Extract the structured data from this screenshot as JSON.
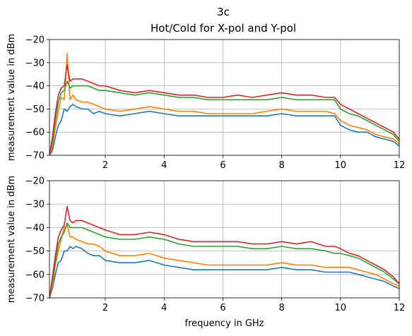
{
  "figure": {
    "title": "3c",
    "subtitle": "Hot/Cold for X-pol and Y-pol"
  },
  "chart_data": [
    {
      "type": "line",
      "title": "",
      "xlabel": "",
      "ylabel": "measurement value in dBm",
      "xlim": [
        0.1,
        12
      ],
      "ylim": [
        -70,
        -20
      ],
      "xticks": [
        2,
        4,
        6,
        8,
        10,
        12
      ],
      "yticks": [
        -70,
        -60,
        -50,
        -40,
        -30,
        -20
      ],
      "grid": true,
      "x": [
        0.1,
        0.2,
        0.3,
        0.4,
        0.5,
        0.6,
        0.7,
        0.8,
        0.9,
        1.0,
        1.2,
        1.4,
        1.6,
        1.8,
        2.0,
        2.5,
        3.0,
        3.5,
        4.0,
        4.5,
        5.0,
        5.5,
        6.0,
        6.5,
        7.0,
        7.5,
        8.0,
        8.5,
        9.0,
        9.5,
        9.8,
        10.0,
        10.3,
        10.6,
        10.9,
        11.2,
        11.5,
        11.8,
        12.0
      ],
      "series": [
        {
          "color": "#1f77b4",
          "values": [
            -70,
            -68,
            -62,
            -57,
            -55,
            -50,
            -51,
            -49,
            -48,
            -49,
            -50,
            -50,
            -52,
            -51,
            -52,
            -53,
            -52,
            -51,
            -52,
            -53,
            -53,
            -53,
            -53,
            -53,
            -53,
            -53,
            -52,
            -53,
            -53,
            -53,
            -53,
            -57,
            -59,
            -60,
            -60,
            -62,
            -63,
            -64,
            -66
          ]
        },
        {
          "color": "#ff7f0e",
          "values": [
            -70,
            -66,
            -58,
            -51,
            -45,
            -46,
            -26,
            -46,
            -44,
            -46,
            -47,
            -47,
            -48,
            -49,
            -50,
            -51,
            -50,
            -49,
            -50,
            -51,
            -51,
            -52,
            -52,
            -52,
            -52,
            -51,
            -50,
            -51,
            -51,
            -51,
            -52,
            -55,
            -57,
            -58,
            -59,
            -61,
            -62,
            -63,
            -65
          ]
        },
        {
          "color": "#2ca02c",
          "values": [
            -70,
            -64,
            -55,
            -47,
            -43,
            -42,
            -38,
            -41,
            -40,
            -40,
            -40,
            -40,
            -41,
            -42,
            -42,
            -43,
            -44,
            -43,
            -44,
            -45,
            -45,
            -46,
            -46,
            -46,
            -46,
            -46,
            -45,
            -46,
            -46,
            -46,
            -46,
            -50,
            -52,
            -53,
            -55,
            -57,
            -59,
            -61,
            -64
          ]
        },
        {
          "color": "#d62728",
          "values": [
            -70,
            -62,
            -52,
            -44,
            -41,
            -40,
            -31,
            -38,
            -37,
            -37,
            -37,
            -38,
            -39,
            -40,
            -40,
            -42,
            -43,
            -42,
            -43,
            -44,
            -44,
            -45,
            -45,
            -44,
            -45,
            -44,
            -43,
            -44,
            -44,
            -45,
            -45,
            -48,
            -50,
            -52,
            -54,
            -56,
            -58,
            -60,
            -63
          ]
        }
      ]
    },
    {
      "type": "line",
      "title": "",
      "xlabel": "frequency in GHz",
      "ylabel": "measurement value in dBm",
      "xlim": [
        0.1,
        12
      ],
      "ylim": [
        -70,
        -20
      ],
      "xticks": [
        2,
        4,
        6,
        8,
        10,
        12
      ],
      "yticks": [
        -70,
        -60,
        -50,
        -40,
        -30,
        -20
      ],
      "grid": true,
      "x": [
        0.1,
        0.2,
        0.3,
        0.4,
        0.5,
        0.6,
        0.7,
        0.8,
        0.9,
        1.0,
        1.2,
        1.4,
        1.6,
        1.8,
        2.0,
        2.5,
        3.0,
        3.5,
        4.0,
        4.5,
        5.0,
        5.5,
        6.0,
        6.5,
        7.0,
        7.5,
        8.0,
        8.5,
        9.0,
        9.5,
        9.8,
        10.0,
        10.3,
        10.6,
        10.9,
        11.2,
        11.5,
        11.8,
        12.0
      ],
      "series": [
        {
          "color": "#1f77b4",
          "values": [
            -70,
            -66,
            -60,
            -55,
            -54,
            -50,
            -50,
            -48,
            -49,
            -48,
            -49,
            -51,
            -52,
            -52,
            -54,
            -55,
            -55,
            -54,
            -56,
            -57,
            -58,
            -58,
            -58,
            -58,
            -58,
            -58,
            -57,
            -58,
            -58,
            -59,
            -59,
            -59,
            -59,
            -60,
            -61,
            -62,
            -63,
            -65,
            -66
          ]
        },
        {
          "color": "#ff7f0e",
          "values": [
            -70,
            -65,
            -56,
            -50,
            -45,
            -40,
            -39,
            -44,
            -44,
            -45,
            -46,
            -47,
            -47,
            -48,
            -50,
            -52,
            -52,
            -51,
            -53,
            -54,
            -55,
            -56,
            -56,
            -56,
            -56,
            -56,
            -55,
            -56,
            -56,
            -57,
            -57,
            -57,
            -57,
            -58,
            -59,
            -60,
            -62,
            -64,
            -65
          ]
        },
        {
          "color": "#2ca02c",
          "values": [
            -70,
            -63,
            -55,
            -47,
            -44,
            -42,
            -38,
            -40,
            -40,
            -40,
            -40,
            -41,
            -42,
            -43,
            -44,
            -45,
            -45,
            -44,
            -45,
            -47,
            -48,
            -48,
            -48,
            -48,
            -49,
            -49,
            -48,
            -49,
            -49,
            -50,
            -51,
            -51,
            -52,
            -53,
            -55,
            -57,
            -59,
            -62,
            -64
          ]
        },
        {
          "color": "#d62728",
          "values": [
            -70,
            -61,
            -52,
            -44,
            -41,
            -39,
            -31,
            -37,
            -38,
            -37,
            -37,
            -38,
            -39,
            -40,
            -41,
            -43,
            -43,
            -42,
            -43,
            -45,
            -46,
            -46,
            -46,
            -46,
            -47,
            -47,
            -46,
            -47,
            -46,
            -48,
            -48,
            -49,
            -51,
            -52,
            -54,
            -56,
            -58,
            -61,
            -64
          ]
        }
      ]
    }
  ]
}
